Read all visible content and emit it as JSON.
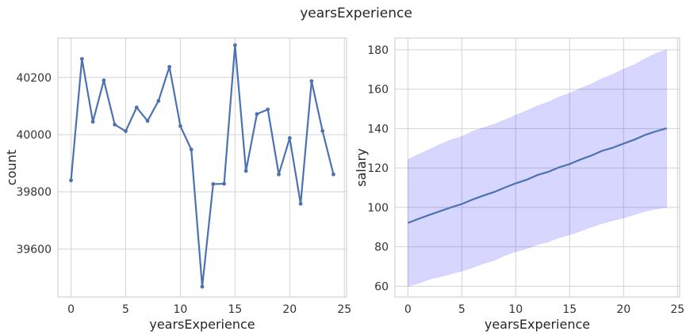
{
  "figure": {
    "title": "yearsExperience"
  },
  "chart_data": [
    {
      "type": "line",
      "title": "",
      "xlabel": "yearsExperience",
      "ylabel": "count",
      "x": [
        0,
        1,
        2,
        3,
        4,
        5,
        6,
        7,
        8,
        9,
        10,
        11,
        12,
        13,
        14,
        15,
        16,
        17,
        18,
        19,
        20,
        21,
        22,
        23,
        24
      ],
      "series": [
        {
          "name": "",
          "values": [
            39840,
            40265,
            40045,
            40190,
            40035,
            40012,
            40095,
            40048,
            40118,
            40237,
            40030,
            39948,
            39468,
            39827,
            39828,
            40313,
            39873,
            40072,
            40088,
            39861,
            39988,
            39758,
            40187,
            40013,
            39861
          ]
        }
      ],
      "xlim": [
        -1.2,
        25.2
      ],
      "ylim": [
        39432,
        40338
      ],
      "xticks": [
        0,
        5,
        10,
        15,
        20,
        25
      ],
      "yticks": [
        39600,
        39800,
        40000,
        40200
      ],
      "grid": true,
      "markers": true,
      "color": "#4c72b0"
    },
    {
      "type": "area",
      "title": "",
      "xlabel": "yearsExperience",
      "ylabel": "salary",
      "x": [
        0,
        1,
        2,
        3,
        4,
        5,
        6,
        7,
        8,
        9,
        10,
        11,
        12,
        13,
        14,
        15,
        16,
        17,
        18,
        19,
        20,
        21,
        22,
        23,
        24
      ],
      "series": [
        {
          "name": "",
          "role": "mean",
          "values": [
            92.1,
            94.2,
            96.2,
            98.1,
            100.0,
            101.7,
            104.0,
            106.0,
            107.8,
            110.1,
            112.2,
            114.0,
            116.4,
            118.0,
            120.3,
            122.0,
            124.3,
            126.3,
            128.7,
            130.3,
            132.4,
            134.4,
            136.8,
            138.6,
            140.2
          ]
        },
        {
          "name": "",
          "role": "upper",
          "values": [
            124.3,
            126.9,
            129.4,
            132.0,
            134.3,
            136.0,
            138.6,
            140.4,
            142.2,
            144.5,
            146.8,
            149.0,
            151.6,
            153.4,
            156.0,
            158.0,
            160.4,
            162.6,
            165.4,
            167.5,
            170.2,
            172.5,
            175.5,
            178.2,
            180.0
          ]
        },
        {
          "name": "",
          "role": "lower",
          "values": [
            60.0,
            61.5,
            63.5,
            64.8,
            66.2,
            67.6,
            69.4,
            71.5,
            73.1,
            75.6,
            77.5,
            79.0,
            81.1,
            82.5,
            84.6,
            86.0,
            88.0,
            90.0,
            91.8,
            93.3,
            94.6,
            96.3,
            98.0,
            99.2,
            100.0
          ]
        }
      ],
      "xlim": [
        -1.2,
        25.2
      ],
      "ylim": [
        54.5,
        186
      ],
      "xticks": [
        0,
        5,
        10,
        15,
        20,
        25
      ],
      "yticks": [
        60,
        80,
        100,
        120,
        140,
        160,
        180
      ],
      "grid": true,
      "line_color": "#4c72b0",
      "band_color": "#0000ff",
      "band_opacity": 0.16
    }
  ]
}
